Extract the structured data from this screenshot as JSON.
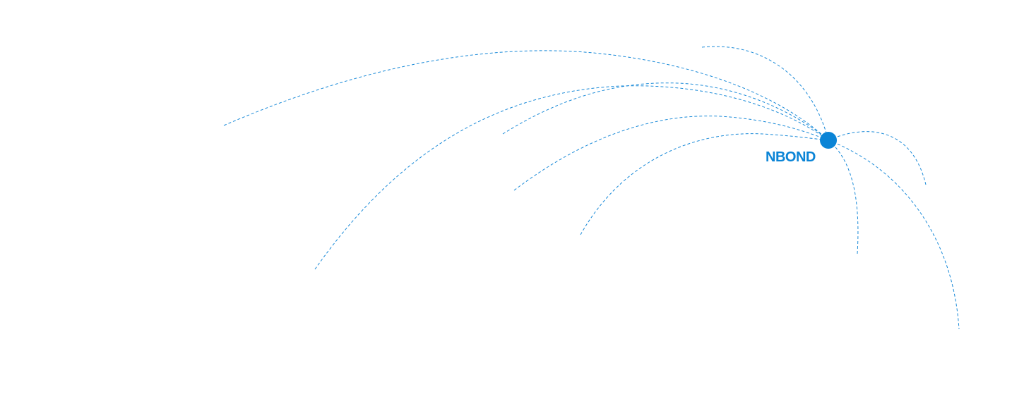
{
  "hub": {
    "label": "NBOND",
    "color": "#0a84d6"
  },
  "arc_color": "#1a8ad8"
}
